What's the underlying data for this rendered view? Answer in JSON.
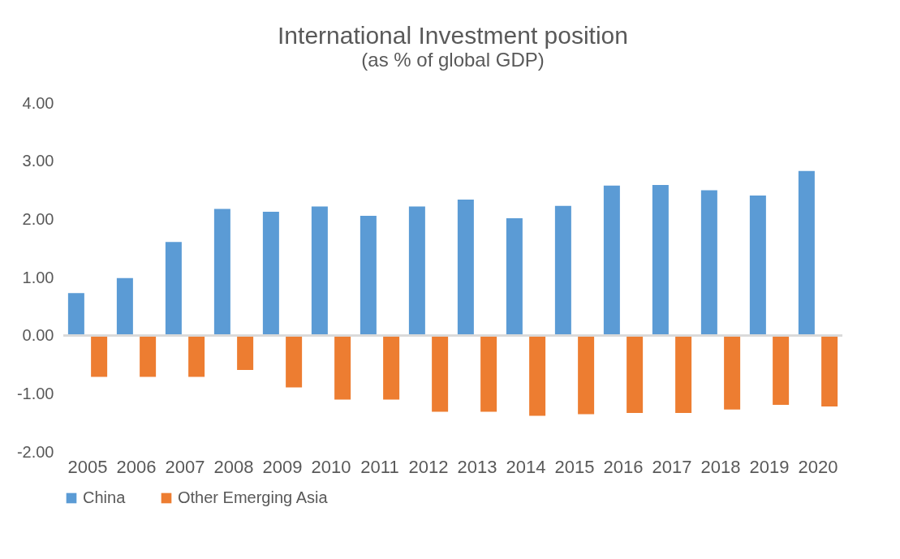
{
  "chart_data": {
    "type": "bar",
    "title": "International Investment position",
    "subtitle": "(as % of global GDP)",
    "categories": [
      "2005",
      "2006",
      "2007",
      "2008",
      "2009",
      "2010",
      "2011",
      "2012",
      "2013",
      "2014",
      "2015",
      "2016",
      "2017",
      "2018",
      "2019",
      "2020"
    ],
    "series": [
      {
        "name": "China",
        "color": "#5b9bd5",
        "values": [
          0.73,
          0.99,
          1.61,
          2.18,
          2.13,
          2.22,
          2.06,
          2.22,
          2.34,
          2.02,
          2.23,
          2.58,
          2.59,
          2.5,
          2.41,
          2.83
        ]
      },
      {
        "name": "Other Emerging Asia",
        "color": "#ed7d31",
        "values": [
          -0.71,
          -0.71,
          -0.71,
          -0.59,
          -0.89,
          -1.1,
          -1.1,
          -1.31,
          -1.31,
          -1.38,
          -1.35,
          -1.33,
          -1.33,
          -1.27,
          -1.19,
          -1.22
        ]
      }
    ],
    "ylim": [
      -2,
      4
    ],
    "yticks": [
      {
        "value": -2,
        "label": "-2.00"
      },
      {
        "value": -1,
        "label": "-1.00"
      },
      {
        "value": 0,
        "label": "0.00"
      },
      {
        "value": 1,
        "label": "1.00"
      },
      {
        "value": 2,
        "label": "2.00"
      },
      {
        "value": 3,
        "label": "3.00"
      },
      {
        "value": 4,
        "label": "4.00"
      }
    ],
    "legend": "bottom"
  }
}
